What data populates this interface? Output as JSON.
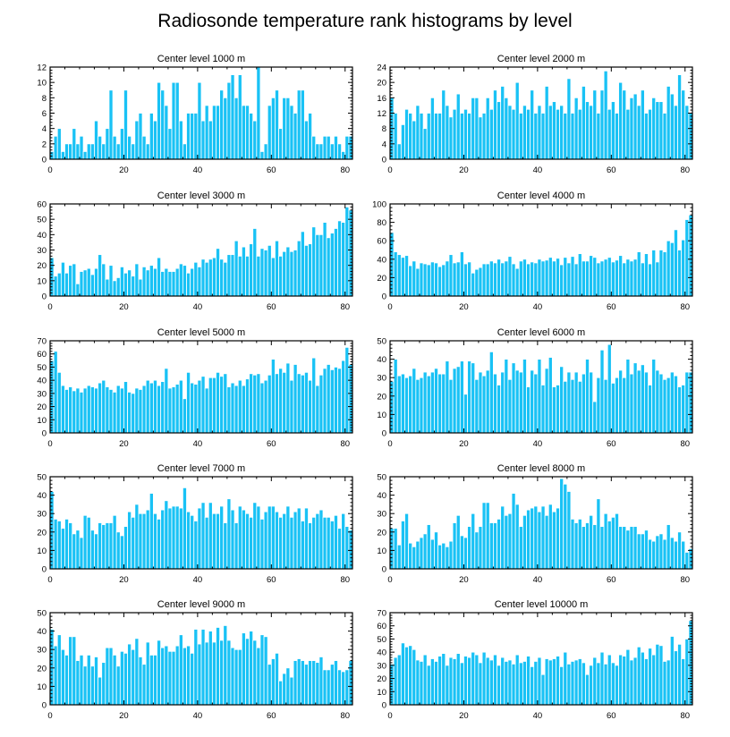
{
  "figure_title": "Radiosonde temperature rank histograms by level",
  "colors": {
    "bar": "#19c2f5",
    "bar_edge": "#ffffff",
    "axis": "#000000"
  },
  "chart_data": [
    {
      "type": "bar",
      "title": "Center level 1000 m",
      "xlim": [
        0,
        82
      ],
      "ylim": [
        0,
        12
      ],
      "xticks": [
        0,
        20,
        40,
        60,
        80
      ],
      "yticks": [
        0,
        2,
        4,
        6,
        8,
        10,
        12
      ],
      "values": [
        1,
        3,
        4,
        1,
        2,
        2,
        4,
        2,
        3,
        1,
        2,
        2,
        5,
        3,
        2,
        4,
        9,
        3,
        2,
        4,
        9,
        3,
        2,
        5,
        6,
        3,
        2,
        6,
        5,
        10,
        9,
        7,
        4,
        10,
        10,
        5,
        2,
        6,
        6,
        6,
        10,
        5,
        7,
        5,
        7,
        7,
        9,
        8,
        10,
        11,
        8,
        11,
        7,
        7,
        6,
        5,
        12,
        1,
        2,
        7,
        8,
        9,
        4,
        8,
        8,
        7,
        6,
        9,
        9,
        5,
        6,
        3,
        2,
        2,
        3,
        3,
        2,
        3,
        2,
        1,
        3,
        3
      ]
    },
    {
      "type": "bar",
      "title": "Center level 2000 m",
      "xlim": [
        0,
        82
      ],
      "ylim": [
        0,
        24
      ],
      "xticks": [
        0,
        20,
        40,
        60,
        80
      ],
      "yticks": [
        0,
        4,
        8,
        12,
        16,
        20,
        24
      ],
      "values": [
        16,
        12,
        4,
        9,
        13,
        12,
        10,
        14,
        12,
        8,
        12,
        16,
        12,
        12,
        18,
        14,
        11,
        13,
        17,
        12,
        13,
        12,
        16,
        16,
        11,
        12,
        16,
        13,
        18,
        15,
        19,
        16,
        14,
        13,
        20,
        12,
        14,
        13,
        18,
        12,
        14,
        12,
        19,
        14,
        15,
        13,
        14,
        12,
        21,
        12,
        16,
        13,
        19,
        15,
        14,
        18,
        12,
        18,
        23,
        13,
        15,
        12,
        20,
        18,
        13,
        16,
        17,
        14,
        18,
        12,
        13,
        16,
        15,
        15,
        12,
        19,
        17,
        14,
        22,
        18,
        14,
        12
      ]
    },
    {
      "type": "bar",
      "title": "Center level 3000 m",
      "xlim": [
        0,
        82
      ],
      "ylim": [
        0,
        60
      ],
      "xticks": [
        0,
        20,
        40,
        60,
        80
      ],
      "yticks": [
        0,
        10,
        20,
        30,
        40,
        50,
        60
      ],
      "values": [
        25,
        13,
        15,
        22,
        15,
        20,
        21,
        8,
        16,
        17,
        18,
        14,
        18,
        27,
        21,
        11,
        20,
        10,
        12,
        19,
        15,
        17,
        13,
        21,
        11,
        19,
        17,
        20,
        18,
        25,
        16,
        18,
        16,
        16,
        18,
        21,
        20,
        15,
        18,
        22,
        19,
        24,
        22,
        24,
        25,
        31,
        24,
        22,
        27,
        27,
        36,
        26,
        32,
        26,
        34,
        44,
        26,
        31,
        30,
        33,
        25,
        36,
        26,
        29,
        32,
        29,
        30,
        36,
        42,
        33,
        34,
        45,
        40,
        40,
        48,
        38,
        41,
        44,
        49,
        48,
        58,
        56
      ]
    },
    {
      "type": "bar",
      "title": "Center level 4000 m",
      "xlim": [
        0,
        82
      ],
      "ylim": [
        0,
        100
      ],
      "xticks": [
        0,
        20,
        40,
        60,
        80
      ],
      "yticks": [
        0,
        20,
        40,
        60,
        80,
        100
      ],
      "values": [
        69,
        48,
        45,
        42,
        44,
        33,
        38,
        30,
        36,
        35,
        34,
        37,
        36,
        32,
        34,
        38,
        45,
        36,
        37,
        48,
        35,
        37,
        25,
        29,
        31,
        35,
        35,
        38,
        36,
        40,
        36,
        38,
        43,
        35,
        30,
        38,
        40,
        35,
        37,
        36,
        40,
        38,
        39,
        42,
        38,
        41,
        34,
        42,
        36,
        43,
        35,
        46,
        38,
        38,
        44,
        42,
        36,
        38,
        40,
        42,
        37,
        39,
        44,
        36,
        40,
        38,
        40,
        48,
        36,
        46,
        35,
        50,
        37,
        50,
        48,
        60,
        58,
        72,
        50,
        61,
        83,
        88
      ]
    },
    {
      "type": "bar",
      "title": "Center level 5000 m",
      "xlim": [
        0,
        82
      ],
      "ylim": [
        0,
        70
      ],
      "xticks": [
        0,
        20,
        40,
        60,
        80
      ],
      "yticks": [
        0,
        10,
        20,
        30,
        40,
        50,
        60,
        70
      ],
      "values": [
        55,
        62,
        46,
        36,
        33,
        35,
        32,
        34,
        31,
        34,
        36,
        35,
        34,
        38,
        40,
        35,
        33,
        31,
        36,
        34,
        39,
        31,
        30,
        34,
        33,
        36,
        40,
        38,
        40,
        36,
        39,
        49,
        34,
        35,
        37,
        40,
        26,
        46,
        38,
        37,
        40,
        43,
        34,
        42,
        42,
        46,
        43,
        45,
        35,
        38,
        36,
        40,
        36,
        41,
        45,
        44,
        45,
        38,
        40,
        44,
        56,
        45,
        49,
        46,
        53,
        40,
        52,
        45,
        44,
        46,
        40,
        57,
        36,
        44,
        49,
        52,
        48,
        50,
        49,
        55,
        65,
        52
      ]
    },
    {
      "type": "bar",
      "title": "Center level 6000 m",
      "xlim": [
        0,
        82
      ],
      "ylim": [
        0,
        50
      ],
      "xticks": [
        0,
        20,
        40,
        60,
        80
      ],
      "yticks": [
        0,
        10,
        20,
        30,
        40,
        50
      ],
      "values": [
        28,
        40,
        31,
        32,
        30,
        31,
        35,
        29,
        30,
        33,
        31,
        33,
        35,
        32,
        32,
        39,
        29,
        35,
        36,
        39,
        21,
        39,
        38,
        29,
        33,
        31,
        34,
        44,
        32,
        26,
        33,
        40,
        29,
        38,
        34,
        33,
        40,
        25,
        34,
        32,
        40,
        26,
        35,
        41,
        25,
        26,
        36,
        28,
        33,
        29,
        33,
        28,
        32,
        40,
        33,
        17,
        30,
        45,
        29,
        48,
        27,
        30,
        34,
        30,
        40,
        32,
        38,
        34,
        37,
        33,
        26,
        40,
        34,
        32,
        29,
        30,
        33,
        31,
        25,
        26,
        33,
        33
      ]
    },
    {
      "type": "bar",
      "title": "Center level 7000 m",
      "xlim": [
        0,
        82
      ],
      "ylim": [
        0,
        50
      ],
      "xticks": [
        0,
        20,
        40,
        60,
        80
      ],
      "yticks": [
        0,
        10,
        20,
        30,
        40,
        50
      ],
      "values": [
        42,
        27,
        26,
        22,
        27,
        25,
        19,
        21,
        17,
        29,
        28,
        21,
        19,
        25,
        24,
        25,
        25,
        29,
        20,
        18,
        23,
        31,
        28,
        35,
        30,
        30,
        32,
        41,
        30,
        27,
        32,
        37,
        33,
        34,
        34,
        33,
        44,
        31,
        29,
        26,
        33,
        36,
        28,
        36,
        30,
        30,
        34,
        25,
        38,
        32,
        25,
        34,
        32,
        30,
        28,
        36,
        34,
        27,
        31,
        34,
        34,
        31,
        28,
        30,
        34,
        28,
        31,
        33,
        26,
        33,
        25,
        28,
        30,
        32,
        28,
        28,
        26,
        29,
        22,
        30,
        23,
        21
      ]
    },
    {
      "type": "bar",
      "title": "Center level 8000 m",
      "xlim": [
        0,
        82
      ],
      "ylim": [
        0,
        50
      ],
      "xticks": [
        0,
        20,
        40,
        60,
        80
      ],
      "yticks": [
        0,
        10,
        20,
        30,
        40,
        50
      ],
      "values": [
        22,
        22,
        13,
        26,
        30,
        14,
        12,
        15,
        17,
        19,
        24,
        16,
        20,
        13,
        14,
        12,
        15,
        25,
        29,
        18,
        17,
        23,
        30,
        20,
        23,
        36,
        36,
        25,
        25,
        27,
        34,
        29,
        30,
        41,
        35,
        23,
        29,
        32,
        33,
        34,
        31,
        34,
        29,
        35,
        31,
        33,
        49,
        46,
        42,
        27,
        25,
        27,
        23,
        25,
        29,
        24,
        38,
        23,
        30,
        26,
        28,
        30,
        23,
        23,
        21,
        23,
        23,
        19,
        19,
        21,
        16,
        15,
        18,
        19,
        16,
        24,
        17,
        15,
        20,
        15,
        9,
        11
      ]
    },
    {
      "type": "bar",
      "title": "Center level 9000 m",
      "xlim": [
        0,
        82
      ],
      "ylim": [
        0,
        50
      ],
      "xticks": [
        0,
        20,
        40,
        60,
        80
      ],
      "yticks": [
        0,
        10,
        20,
        30,
        40,
        50
      ],
      "values": [
        41,
        32,
        38,
        30,
        27,
        37,
        37,
        24,
        27,
        21,
        27,
        21,
        26,
        15,
        23,
        31,
        31,
        27,
        21,
        29,
        28,
        33,
        30,
        36,
        26,
        22,
        34,
        27,
        27,
        35,
        31,
        32,
        29,
        29,
        32,
        38,
        31,
        32,
        28,
        41,
        33,
        41,
        34,
        40,
        34,
        42,
        35,
        43,
        35,
        31,
        30,
        30,
        39,
        36,
        40,
        35,
        31,
        38,
        37,
        22,
        25,
        28,
        13,
        17,
        20,
        15,
        24,
        25,
        24,
        22,
        24,
        24,
        23,
        26,
        19,
        19,
        22,
        24,
        19,
        18,
        19,
        24
      ]
    },
    {
      "type": "bar",
      "title": "Center level 10000 m",
      "xlim": [
        0,
        82
      ],
      "ylim": [
        0,
        70
      ],
      "xticks": [
        0,
        20,
        40,
        60,
        80
      ],
      "yticks": [
        0,
        10,
        20,
        30,
        40,
        50,
        60,
        70
      ],
      "values": [
        31,
        36,
        38,
        47,
        44,
        45,
        42,
        34,
        33,
        38,
        30,
        35,
        33,
        37,
        39,
        30,
        36,
        35,
        39,
        32,
        37,
        36,
        40,
        38,
        32,
        40,
        36,
        34,
        38,
        30,
        36,
        33,
        34,
        31,
        38,
        32,
        33,
        37,
        29,
        33,
        36,
        23,
        35,
        34,
        35,
        37,
        29,
        40,
        31,
        33,
        34,
        35,
        32,
        23,
        30,
        36,
        32,
        40,
        31,
        38,
        32,
        30,
        38,
        37,
        42,
        34,
        36,
        44,
        40,
        35,
        43,
        38,
        46,
        45,
        33,
        34,
        52,
        41,
        46,
        35,
        50,
        64
      ]
    }
  ]
}
